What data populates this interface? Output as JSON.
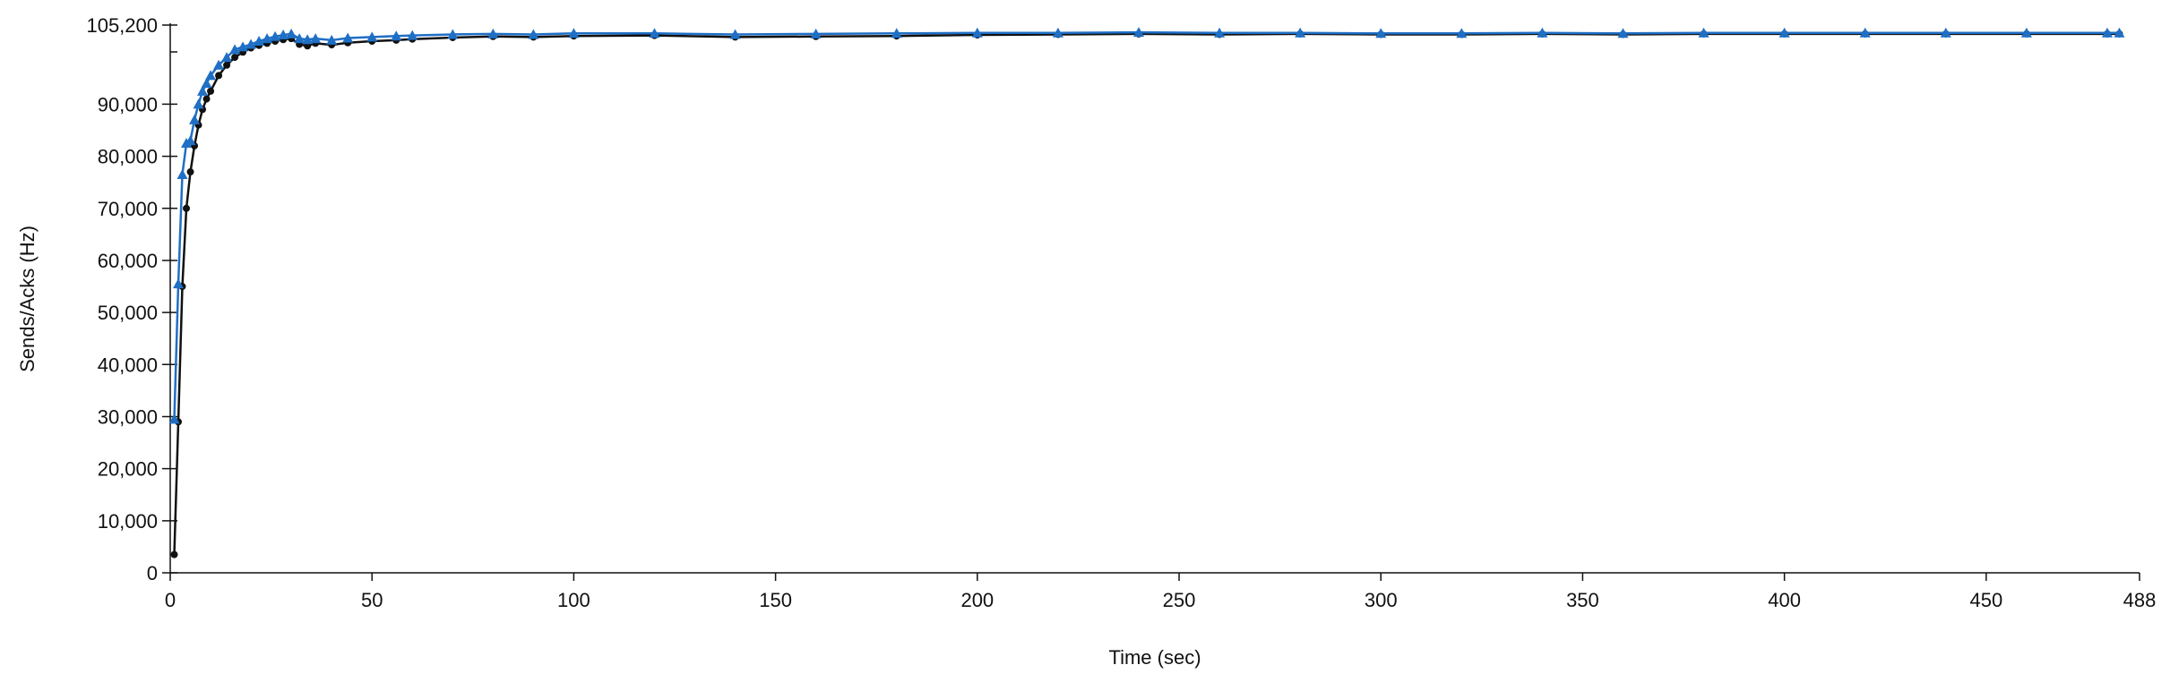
{
  "chart_data": {
    "type": "line",
    "title": "",
    "xlabel": "Time (sec)",
    "ylabel": "Sends/Acks (Hz)",
    "xlim": [
      0,
      488
    ],
    "ylim": [
      0,
      105200
    ],
    "x_ticks": [
      0,
      50,
      100,
      150,
      200,
      250,
      300,
      350,
      400,
      450,
      488
    ],
    "x_tick_labels": [
      "0",
      "50",
      "100",
      "150",
      "200",
      "250",
      "300",
      "350",
      "400",
      "450",
      "488"
    ],
    "y_ticks": [
      0,
      10000,
      20000,
      30000,
      40000,
      50000,
      60000,
      70000,
      80000,
      90000,
      105200
    ],
    "y_tick_labels": [
      "0",
      "10,000",
      "20,000",
      "30,000",
      "40,000",
      "50,000",
      "60,000",
      "70,000",
      "80,000",
      "90,000",
      "105,200"
    ],
    "grid": false,
    "legend": "none",
    "series": [
      {
        "marker": "circle",
        "color": "#111111",
        "x": [
          1,
          2,
          3,
          4,
          5,
          6,
          7,
          8,
          9,
          10,
          12,
          14,
          16,
          18,
          20,
          22,
          24,
          26,
          28,
          30,
          32,
          34,
          36,
          40,
          44,
          50,
          56,
          60,
          70,
          80,
          90,
          100,
          120,
          140,
          160,
          180,
          200,
          220,
          240,
          260,
          280,
          300,
          320,
          340,
          360,
          380,
          400,
          420,
          440,
          460,
          480,
          483
        ],
        "y": [
          3500,
          29000,
          55000,
          70000,
          77000,
          82000,
          86000,
          89000,
          91000,
          92500,
          95500,
          97500,
          99000,
          100000,
          100800,
          101300,
          101700,
          102100,
          102400,
          102600,
          101500,
          101200,
          101700,
          101400,
          101800,
          102100,
          102300,
          102500,
          102800,
          103000,
          102900,
          103100,
          103200,
          102900,
          103000,
          103100,
          103300,
          103400,
          103500,
          103400,
          103500,
          103400,
          103400,
          103500,
          103400,
          103500,
          103500,
          103500,
          103500,
          103500,
          103500,
          103500
        ]
      },
      {
        "marker": "triangle",
        "color": "#1f6fc5",
        "x": [
          1,
          2,
          3,
          4,
          5,
          6,
          7,
          8,
          9,
          10,
          12,
          14,
          16,
          18,
          20,
          22,
          24,
          26,
          28,
          30,
          32,
          34,
          36,
          40,
          44,
          50,
          56,
          60,
          70,
          80,
          90,
          100,
          120,
          140,
          160,
          180,
          200,
          220,
          240,
          260,
          280,
          300,
          320,
          340,
          360,
          380,
          400,
          420,
          440,
          460,
          480,
          483
        ],
        "y": [
          29500,
          55500,
          76500,
          82500,
          83000,
          87000,
          90000,
          92500,
          94000,
          95500,
          97500,
          99000,
          100500,
          101000,
          101500,
          102100,
          102600,
          103000,
          103300,
          103500,
          102600,
          102400,
          102600,
          102300,
          102700,
          102900,
          103100,
          103200,
          103400,
          103500,
          103400,
          103600,
          103600,
          103400,
          103500,
          103600,
          103700,
          103700,
          103800,
          103700,
          103700,
          103600,
          103600,
          103700,
          103600,
          103700,
          103700,
          103700,
          103700,
          103700,
          103700,
          103700
        ]
      }
    ]
  }
}
